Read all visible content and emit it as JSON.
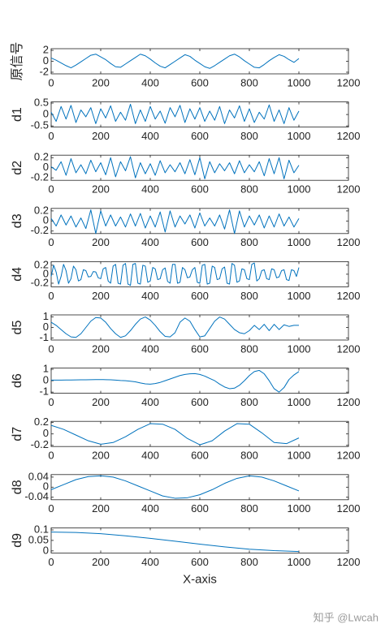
{
  "chart_data": [
    {
      "type": "line",
      "ylabel": "原信号",
      "color": "#0072BD",
      "x": [
        0,
        20,
        40,
        60,
        80,
        100,
        120,
        140,
        160,
        180,
        200,
        220,
        240,
        260,
        280,
        300,
        320,
        340,
        360,
        380,
        400,
        420,
        440,
        460,
        480,
        500,
        520,
        540,
        560,
        580,
        600,
        620,
        640,
        660,
        680,
        700,
        720,
        740,
        760,
        780,
        800,
        820,
        840,
        860,
        880,
        900,
        920,
        940,
        960,
        980,
        1000
      ],
      "values": [
        0.6,
        0.2,
        -0.3,
        -0.8,
        -1.2,
        -0.7,
        -0.1,
        0.5,
        1.1,
        1.3,
        0.8,
        0.3,
        -0.4,
        -1.0,
        -1.1,
        -0.5,
        0.1,
        0.7,
        1.3,
        1.0,
        0.4,
        -0.3,
        -0.9,
        -1.2,
        -0.6,
        0.0,
        0.6,
        1.2,
        0.9,
        0.2,
        -0.4,
        -1.0,
        -1.3,
        -0.8,
        -0.2,
        0.4,
        1.0,
        1.3,
        0.8,
        0.1,
        -0.5,
        -1.1,
        -1.2,
        -0.6,
        0.1,
        0.7,
        1.2,
        0.9,
        0.3,
        -0.2,
        0.5
      ],
      "xlim": [
        0,
        1200
      ],
      "xticks": [
        0,
        200,
        400,
        600,
        800,
        1000,
        1200
      ],
      "ylim": [
        -2.3,
        2.3
      ],
      "yticks": [
        -2,
        0,
        2
      ]
    },
    {
      "type": "line",
      "ylabel": "d1",
      "color": "#0072BD",
      "x": [
        0,
        20,
        40,
        60,
        80,
        100,
        120,
        140,
        160,
        180,
        200,
        220,
        240,
        260,
        280,
        300,
        320,
        340,
        360,
        380,
        400,
        420,
        440,
        460,
        480,
        500,
        520,
        540,
        560,
        580,
        600,
        620,
        640,
        660,
        680,
        700,
        720,
        740,
        760,
        780,
        800,
        820,
        840,
        860,
        880,
        900,
        920,
        940,
        960,
        980,
        1000
      ],
      "values": [
        0.1,
        -0.3,
        0.35,
        -0.2,
        0.4,
        -0.35,
        0.2,
        -0.1,
        0.3,
        -0.4,
        0.25,
        -0.15,
        0.38,
        -0.3,
        0.1,
        -0.25,
        0.45,
        -0.4,
        0.2,
        -0.3,
        0.35,
        -0.2,
        0.15,
        -0.38,
        0.3,
        -0.1,
        0.4,
        -0.35,
        0.25,
        -0.2,
        0.3,
        -0.3,
        0.15,
        -0.25,
        0.35,
        -0.4,
        0.2,
        -0.15,
        0.38,
        -0.3,
        0.25,
        -0.35,
        0.1,
        -0.2,
        0.42,
        -0.3,
        0.2,
        -0.4,
        0.3,
        -0.25,
        0.15
      ],
      "xlim": [
        0,
        1200
      ],
      "xticks": [
        0,
        200,
        400,
        600,
        800,
        1000,
        1200
      ],
      "ylim": [
        -0.55,
        0.55
      ],
      "yticks": [
        -0.5,
        0,
        0.5
      ]
    },
    {
      "type": "line",
      "ylabel": "d2",
      "color": "#0072BD",
      "x": [
        0,
        20,
        40,
        60,
        80,
        100,
        120,
        140,
        160,
        180,
        200,
        220,
        240,
        260,
        280,
        300,
        320,
        340,
        360,
        380,
        400,
        420,
        440,
        460,
        480,
        500,
        520,
        540,
        560,
        580,
        600,
        620,
        640,
        660,
        680,
        700,
        720,
        740,
        760,
        780,
        800,
        820,
        840,
        860,
        880,
        900,
        920,
        940,
        960,
        980,
        1000
      ],
      "values": [
        0.02,
        -0.05,
        0.12,
        -0.15,
        0.18,
        -0.1,
        0.06,
        -0.12,
        0.15,
        -0.08,
        0.1,
        -0.14,
        0.2,
        -0.18,
        0.12,
        -0.06,
        0.22,
        -0.2,
        0.1,
        -0.12,
        0.08,
        -0.15,
        0.14,
        -0.1,
        0.06,
        -0.08,
        0.1,
        -0.12,
        0.16,
        -0.14,
        0.2,
        -0.22,
        0.12,
        -0.1,
        0.08,
        -0.06,
        0.1,
        -0.12,
        0.14,
        -0.1,
        0.06,
        -0.08,
        0.12,
        -0.16,
        0.18,
        -0.12,
        0.2,
        -0.22,
        0.15,
        -0.1,
        0.05
      ],
      "xlim": [
        0,
        1200
      ],
      "xticks": [
        0,
        200,
        400,
        600,
        800,
        1000,
        1200
      ],
      "ylim": [
        -0.25,
        0.25
      ],
      "yticks": [
        -0.2,
        0,
        0.2
      ]
    },
    {
      "type": "line",
      "ylabel": "d3",
      "color": "#0072BD",
      "x": [
        0,
        20,
        40,
        60,
        80,
        100,
        120,
        140,
        160,
        180,
        200,
        220,
        240,
        260,
        280,
        300,
        320,
        340,
        360,
        380,
        400,
        420,
        440,
        460,
        480,
        500,
        520,
        540,
        560,
        580,
        600,
        620,
        640,
        660,
        680,
        700,
        720,
        740,
        760,
        780,
        800,
        820,
        840,
        860,
        880,
        900,
        920,
        940,
        960,
        980,
        1000
      ],
      "values": [
        0.05,
        -0.1,
        0.12,
        -0.08,
        0.1,
        -0.12,
        0.06,
        -0.15,
        0.22,
        -0.25,
        0.2,
        -0.1,
        0.12,
        -0.1,
        0.08,
        -0.12,
        0.14,
        -0.1,
        0.15,
        -0.14,
        0.1,
        -0.12,
        0.18,
        -0.22,
        0.2,
        -0.12,
        0.1,
        -0.06,
        0.12,
        -0.14,
        0.16,
        -0.1,
        0.06,
        -0.1,
        0.12,
        -0.16,
        0.22,
        -0.25,
        0.2,
        -0.12,
        0.1,
        -0.08,
        0.12,
        -0.14,
        0.1,
        -0.12,
        0.14,
        -0.1,
        0.08,
        -0.12,
        0.05
      ],
      "xlim": [
        0,
        1200
      ],
      "xticks": [
        0,
        200,
        400,
        600,
        800,
        1000,
        1200
      ],
      "ylim": [
        -0.25,
        0.25
      ],
      "yticks": [
        -0.2,
        0,
        0.2
      ]
    },
    {
      "type": "line",
      "ylabel": "d4",
      "color": "#0072BD",
      "x": [
        0,
        10,
        20,
        30,
        40,
        50,
        60,
        70,
        80,
        90,
        100,
        110,
        120,
        130,
        140,
        150,
        160,
        170,
        180,
        190,
        200,
        210,
        220,
        230,
        240,
        250,
        260,
        270,
        280,
        290,
        300,
        310,
        320,
        330,
        340,
        350,
        360,
        370,
        380,
        390,
        400,
        410,
        420,
        430,
        440,
        450,
        460,
        470,
        480,
        490,
        500,
        510,
        520,
        530,
        540,
        550,
        560,
        570,
        580,
        590,
        600,
        610,
        620,
        630,
        640,
        650,
        660,
        670,
        680,
        690,
        700,
        710,
        720,
        730,
        740,
        750,
        760,
        770,
        780,
        790,
        800,
        810,
        820,
        830,
        840,
        850,
        860,
        870,
        880,
        890,
        900,
        910,
        920,
        930,
        940,
        950,
        960,
        970,
        980,
        990,
        1000
      ],
      "values": [
        -0.05,
        0.2,
        0.05,
        -0.22,
        -0.05,
        0.22,
        0.08,
        -0.2,
        -0.1,
        0.18,
        0.1,
        -0.15,
        -0.12,
        0.1,
        0.08,
        -0.06,
        -0.05,
        0.06,
        0.05,
        -0.08,
        -0.1,
        0.12,
        0.15,
        -0.15,
        -0.2,
        0.18,
        0.22,
        -0.2,
        -0.22,
        0.2,
        0.24,
        -0.22,
        -0.25,
        0.22,
        0.24,
        -0.2,
        -0.22,
        0.2,
        0.18,
        -0.18,
        -0.15,
        0.15,
        0.12,
        -0.12,
        -0.1,
        0.1,
        0.14,
        -0.16,
        -0.2,
        0.22,
        0.22,
        -0.2,
        -0.18,
        0.15,
        0.1,
        -0.08,
        -0.06,
        0.1,
        0.15,
        -0.18,
        -0.2,
        0.2,
        0.22,
        -0.22,
        -0.2,
        0.18,
        0.15,
        -0.12,
        -0.1,
        0.12,
        0.16,
        -0.2,
        -0.22,
        0.24,
        0.2,
        -0.18,
        -0.15,
        0.12,
        0.1,
        -0.1,
        -0.12,
        0.22,
        0.25,
        -0.15,
        -0.1,
        0.08,
        0.1,
        -0.1,
        -0.12,
        0.12,
        0.1,
        -0.08,
        -0.06,
        0.08,
        0.1,
        -0.12,
        -0.14,
        0.1,
        0.08,
        -0.05,
        0.15
      ],
      "xlim": [
        0,
        1200
      ],
      "xticks": [
        0,
        200,
        400,
        600,
        800,
        1000,
        1200
      ],
      "ylim": [
        -0.28,
        0.28
      ],
      "yticks": [
        -0.2,
        0,
        0.2
      ]
    },
    {
      "type": "line",
      "ylabel": "d5",
      "color": "#0072BD",
      "x": [
        0,
        20,
        40,
        60,
        80,
        100,
        120,
        140,
        160,
        180,
        200,
        220,
        240,
        260,
        280,
        300,
        320,
        340,
        360,
        380,
        400,
        420,
        440,
        460,
        480,
        500,
        520,
        540,
        560,
        580,
        600,
        620,
        640,
        660,
        680,
        700,
        720,
        740,
        760,
        780,
        800,
        820,
        840,
        860,
        880,
        900,
        920,
        940,
        960,
        980,
        1000
      ],
      "values": [
        0.5,
        0.2,
        -0.2,
        -0.6,
        -0.9,
        -0.95,
        -0.6,
        0,
        0.6,
        0.95,
        0.9,
        0.5,
        -0.1,
        -0.6,
        -0.95,
        -0.8,
        -0.3,
        0.3,
        0.8,
        1.0,
        0.7,
        0.2,
        -0.4,
        -0.85,
        -0.9,
        -0.5,
        0.5,
        0.9,
        0.6,
        -0.2,
        -0.9,
        -0.8,
        -0.1,
        0.6,
        1.0,
        0.8,
        0.3,
        -0.2,
        -0.5,
        -0.6,
        -0.3,
        0.2,
        -0.2,
        0.3,
        -0.3,
        0.3,
        -0.2,
        0.25,
        0.1,
        0.2,
        0.2
      ],
      "xlim": [
        0,
        1200
      ],
      "xticks": [
        0,
        200,
        400,
        600,
        800,
        1000,
        1200
      ],
      "ylim": [
        -1.2,
        1.2
      ],
      "yticks": [
        -1,
        0,
        1
      ]
    },
    {
      "type": "line",
      "ylabel": "d6",
      "color": "#0072BD",
      "x": [
        0,
        20,
        40,
        60,
        80,
        100,
        120,
        140,
        160,
        180,
        200,
        220,
        240,
        260,
        280,
        300,
        320,
        340,
        360,
        380,
        400,
        420,
        440,
        460,
        480,
        500,
        520,
        540,
        560,
        580,
        600,
        620,
        640,
        660,
        680,
        700,
        720,
        740,
        760,
        780,
        800,
        820,
        840,
        860,
        880,
        900,
        920,
        940,
        960,
        980,
        1000
      ],
      "values": [
        0.05,
        0.05,
        0.05,
        0.06,
        0.06,
        0.07,
        0.08,
        0.08,
        0.09,
        0.1,
        0.1,
        0.09,
        0.08,
        0.05,
        0.02,
        0,
        -0.05,
        -0.1,
        -0.2,
        -0.28,
        -0.3,
        -0.25,
        -0.15,
        0,
        0.15,
        0.3,
        0.45,
        0.55,
        0.6,
        0.62,
        0.55,
        0.4,
        0.2,
        0,
        -0.3,
        -0.55,
        -0.7,
        -0.65,
        -0.4,
        0,
        0.45,
        0.8,
        0.9,
        0.6,
        0,
        -0.7,
        -1.0,
        -0.6,
        0.1,
        0.5,
        0.8
      ],
      "xlim": [
        0,
        1200
      ],
      "xticks": [
        0,
        200,
        400,
        600,
        800,
        1000,
        1200
      ],
      "ylim": [
        -1.1,
        1.1
      ],
      "yticks": [
        -1,
        0,
        1
      ]
    },
    {
      "type": "line",
      "ylabel": "d7",
      "color": "#0072BD",
      "x": [
        0,
        50,
        100,
        150,
        200,
        250,
        300,
        350,
        400,
        450,
        500,
        550,
        600,
        650,
        700,
        750,
        800,
        850,
        900,
        950,
        1000
      ],
      "values": [
        0.15,
        0.08,
        -0.02,
        -0.12,
        -0.18,
        -0.15,
        -0.05,
        0.08,
        0.18,
        0.17,
        0.08,
        -0.08,
        -0.19,
        -0.12,
        0.05,
        0.18,
        0.17,
        0.02,
        -0.15,
        -0.17,
        -0.07
      ],
      "xlim": [
        0,
        1200
      ],
      "xticks": [
        0,
        200,
        400,
        600,
        800,
        1000,
        1200
      ],
      "ylim": [
        -0.22,
        0.22
      ],
      "yticks": [
        -0.2,
        0,
        0.2
      ]
    },
    {
      "type": "line",
      "ylabel": "d8",
      "color": "#0072BD",
      "x": [
        0,
        50,
        100,
        150,
        200,
        250,
        300,
        350,
        400,
        450,
        500,
        550,
        600,
        650,
        700,
        750,
        800,
        850,
        900,
        950,
        1000
      ],
      "values": [
        -0.01,
        0.01,
        0.03,
        0.042,
        0.045,
        0.04,
        0.025,
        0.005,
        -0.015,
        -0.035,
        -0.044,
        -0.042,
        -0.03,
        -0.01,
        0.015,
        0.035,
        0.045,
        0.04,
        0.025,
        0.005,
        -0.015
      ],
      "xlim": [
        0,
        1200
      ],
      "xticks": [
        0,
        200,
        400,
        600,
        800,
        1000,
        1200
      ],
      "ylim": [
        -0.05,
        0.05
      ],
      "yticks": [
        -0.04,
        0,
        0.04
      ]
    },
    {
      "type": "line",
      "ylabel": "d9",
      "xlabel": "X-axis",
      "color": "#0072BD",
      "x": [
        0,
        100,
        200,
        300,
        400,
        500,
        600,
        700,
        800,
        900,
        1000
      ],
      "values": [
        0.09,
        0.088,
        0.082,
        0.072,
        0.06,
        0.046,
        0.032,
        0.019,
        0.008,
        0.001,
        -0.003
      ],
      "xlim": [
        0,
        1200
      ],
      "xticks": [
        0,
        200,
        400,
        600,
        800,
        1000,
        1200
      ],
      "ylim": [
        -0.01,
        0.11
      ],
      "yticks": [
        0,
        0.05,
        0.1
      ]
    }
  ],
  "watermark": "知乎 @Lwcah"
}
